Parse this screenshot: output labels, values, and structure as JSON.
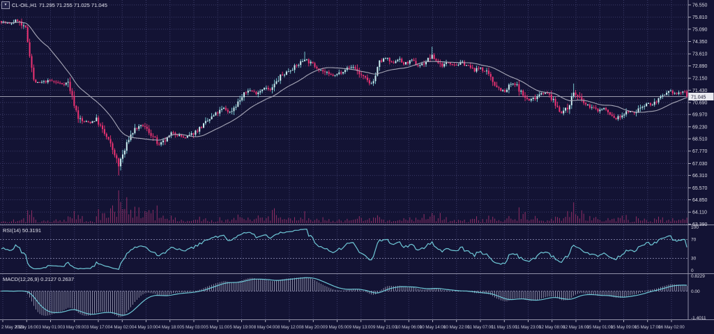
{
  "header": {
    "symbol_period": "CL-OIL,H1",
    "ohlc": "71.295 71.255 71.025 71.045",
    "dropdown_glyph": "▼"
  },
  "price_axis": {
    "labels": [
      "76.550",
      "75.810",
      "75.090",
      "74.350",
      "73.610",
      "72.890",
      "72.150",
      "71.430",
      "70.690",
      "69.970",
      "69.230",
      "68.510",
      "67.770",
      "67.030",
      "66.310",
      "65.570",
      "64.850",
      "64.110",
      "63.390"
    ],
    "current_price": "71.045"
  },
  "time_axis": {
    "labels": [
      "2 May 2023",
      "2 May 16:00",
      "3 May 01:00",
      "3 May 09:00",
      "3 May 17:00",
      "4 May 02:00",
      "4 May 10:00",
      "4 May 18:00",
      "5 May 03:00",
      "5 May 11:00",
      "5 May 19:00",
      "8 May 04:00",
      "8 May 12:00",
      "8 May 20:00",
      "9 May 05:00",
      "9 May 13:00",
      "9 May 21:00",
      "10 May 06:00",
      "10 May 14:00",
      "10 May 22:00",
      "11 May 07:00",
      "11 May 15:00",
      "11 May 23:00",
      "12 May 08:00",
      "12 May 16:00",
      "15 May 01:00",
      "15 May 09:00",
      "15 May 17:00",
      "16 May 02:00"
    ]
  },
  "panes": {
    "rsi": {
      "label": "RSI(14) 50.3191",
      "axis_labels": [
        "100",
        "70",
        "30",
        "0"
      ],
      "levels": [
        70,
        30
      ],
      "range": [
        0,
        100
      ]
    },
    "macd": {
      "label": "MACD(12,26,9) 0.2127 0.2637",
      "axis_labels": [
        "0.8229",
        "0.00",
        "-1.4011"
      ],
      "label_range": [
        -1.4011,
        0.8229
      ]
    }
  },
  "colors": {
    "background": "#131334",
    "grid": "#3c3c6a",
    "bear": "#ef3373",
    "bull_body": "#cdeef1",
    "bull_wick": "#7fd4da",
    "ma_line": "#a8a8b8",
    "volume": "#8f2e65",
    "indicator_line": "#6fc8d7",
    "macd_histogram": "#bcbcd2",
    "separator": "#8f8fa6",
    "price_line": "#c9c9d4",
    "tag_bg": "#e9e9f0"
  },
  "chart_data": {
    "type": "candlestick",
    "title": "CL-OIL,H1",
    "subcharts": [
      "price+SMA+volume",
      "RSI(14)",
      "MACD(12,26,9)"
    ],
    "n_candles": 340,
    "ylim": [
      63.41,
      76.84
    ],
    "ma_period": 24,
    "last_close": 71.045,
    "price_waypoints": [
      [
        0,
        75.55
      ],
      [
        4,
        75.4
      ],
      [
        8,
        75.65
      ],
      [
        10,
        75.3
      ],
      [
        12,
        75.1
      ],
      [
        14,
        73.6
      ],
      [
        16,
        72.0
      ],
      [
        18,
        71.85
      ],
      [
        24,
        72.0
      ],
      [
        30,
        71.8
      ],
      [
        33,
        71.9
      ],
      [
        35,
        71.0
      ],
      [
        37,
        70.2
      ],
      [
        38,
        69.8
      ],
      [
        40,
        69.55
      ],
      [
        44,
        69.5
      ],
      [
        47,
        69.7
      ],
      [
        50,
        69.0
      ],
      [
        53,
        68.4
      ],
      [
        56,
        67.6
      ],
      [
        58,
        66.85
      ],
      [
        59,
        67.3
      ],
      [
        61,
        67.8
      ],
      [
        63,
        68.55
      ],
      [
        66,
        69.1
      ],
      [
        70,
        69.3
      ],
      [
        74,
        68.8
      ],
      [
        78,
        68.1
      ],
      [
        82,
        68.5
      ],
      [
        85,
        68.9
      ],
      [
        88,
        68.7
      ],
      [
        91,
        68.55
      ],
      [
        95,
        68.85
      ],
      [
        100,
        69.35
      ],
      [
        105,
        69.9
      ],
      [
        110,
        70.35
      ],
      [
        113,
        70.1
      ],
      [
        118,
        70.85
      ],
      [
        122,
        71.45
      ],
      [
        126,
        71.25
      ],
      [
        130,
        71.6
      ],
      [
        133,
        71.4
      ],
      [
        138,
        72.25
      ],
      [
        142,
        72.6
      ],
      [
        146,
        72.9
      ],
      [
        150,
        73.3
      ],
      [
        153,
        73.05
      ],
      [
        158,
        72.65
      ],
      [
        162,
        72.35
      ],
      [
        165,
        72.3
      ],
      [
        170,
        72.7
      ],
      [
        174,
        72.85
      ],
      [
        178,
        72.3
      ],
      [
        182,
        71.85
      ],
      [
        184,
        71.95
      ],
      [
        187,
        73.1
      ],
      [
        190,
        73.35
      ],
      [
        193,
        73.05
      ],
      [
        196,
        73.3
      ],
      [
        199,
        73.0
      ],
      [
        203,
        73.2
      ],
      [
        206,
        72.9
      ],
      [
        209,
        73.05
      ],
      [
        213,
        73.5
      ],
      [
        215,
        73.2
      ],
      [
        218,
        72.9
      ],
      [
        221,
        73.1
      ],
      [
        225,
        72.95
      ],
      [
        228,
        73.1
      ],
      [
        231,
        72.85
      ],
      [
        234,
        72.6
      ],
      [
        237,
        72.8
      ],
      [
        240,
        72.45
      ],
      [
        243,
        71.95
      ],
      [
        246,
        71.55
      ],
      [
        249,
        71.3
      ],
      [
        252,
        71.8
      ],
      [
        255,
        71.7
      ],
      [
        258,
        71.1
      ],
      [
        261,
        70.8
      ],
      [
        264,
        71.0
      ],
      [
        267,
        71.3
      ],
      [
        271,
        71.15
      ],
      [
        274,
        70.55
      ],
      [
        277,
        70.1
      ],
      [
        280,
        70.35
      ],
      [
        283,
        71.3
      ],
      [
        286,
        70.9
      ],
      [
        289,
        70.55
      ],
      [
        292,
        70.4
      ],
      [
        295,
        70.2
      ],
      [
        298,
        70.35
      ],
      [
        301,
        69.95
      ],
      [
        304,
        69.7
      ],
      [
        307,
        69.95
      ],
      [
        310,
        70.15
      ],
      [
        313,
        70.05
      ],
      [
        316,
        70.4
      ],
      [
        319,
        70.65
      ],
      [
        322,
        70.55
      ],
      [
        325,
        70.9
      ],
      [
        328,
        71.1
      ],
      [
        331,
        71.35
      ],
      [
        334,
        71.2
      ],
      [
        337,
        71.35
      ],
      [
        339,
        71.05
      ]
    ],
    "wick_spikes": [
      [
        58,
        -0.5
      ],
      [
        150,
        0.45
      ],
      [
        213,
        0.4
      ],
      [
        283,
        0.35
      ]
    ],
    "volume_profile": [
      [
        0,
        1.0
      ],
      [
        40,
        1.2
      ],
      [
        56,
        2.0
      ],
      [
        70,
        3.0
      ],
      [
        82,
        1.3
      ],
      [
        110,
        1.0
      ],
      [
        132,
        2.0
      ],
      [
        145,
        1.9
      ],
      [
        165,
        1.0
      ],
      [
        190,
        1.2
      ],
      [
        213,
        1.7
      ],
      [
        240,
        1.0
      ],
      [
        258,
        1.5
      ],
      [
        270,
        1.1
      ],
      [
        283,
        1.9
      ],
      [
        302,
        1.5
      ],
      [
        320,
        1.1
      ],
      [
        332,
        1.4
      ],
      [
        339,
        1.5
      ]
    ]
  }
}
